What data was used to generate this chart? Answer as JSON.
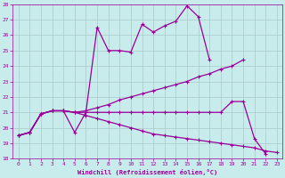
{
  "xlabel": "Windchill (Refroidissement éolien,°C)",
  "xlim": [
    -0.5,
    23.5
  ],
  "ylim": [
    18,
    28
  ],
  "xticks": [
    0,
    1,
    2,
    3,
    4,
    5,
    6,
    7,
    8,
    9,
    10,
    11,
    12,
    13,
    14,
    15,
    16,
    17,
    18,
    19,
    20,
    21,
    22,
    23
  ],
  "yticks": [
    18,
    19,
    20,
    21,
    22,
    23,
    24,
    25,
    26,
    27,
    28
  ],
  "line_color": "#990099",
  "bg_color": "#c8ecec",
  "grid_color": "#aac8c8",
  "series1_x": [
    0,
    1,
    2,
    3,
    4,
    5,
    6,
    7,
    8,
    9,
    10,
    11,
    12,
    13,
    14,
    15,
    16,
    17
  ],
  "series1_y": [
    19.5,
    19.7,
    20.9,
    21.1,
    21.1,
    19.7,
    21.0,
    26.5,
    25.0,
    25.0,
    24.9,
    26.7,
    26.2,
    26.6,
    26.9,
    27.9,
    27.2,
    24.4
  ],
  "series2_x": [
    0,
    1,
    2,
    3,
    4,
    5,
    6,
    7,
    8,
    9,
    10,
    11,
    12,
    13,
    14,
    15,
    16,
    17,
    18,
    19,
    20
  ],
  "series2_y": [
    19.5,
    19.7,
    20.9,
    21.1,
    21.1,
    21.0,
    21.1,
    21.3,
    21.5,
    21.8,
    22.0,
    22.2,
    22.4,
    22.6,
    22.8,
    23.0,
    23.3,
    23.5,
    23.8,
    24.0,
    24.4
  ],
  "series3_x": [
    0,
    1,
    2,
    3,
    4,
    5,
    6,
    7,
    8,
    9,
    10,
    11,
    12,
    13,
    14,
    15,
    16,
    17,
    18,
    19,
    20,
    21,
    22
  ],
  "series3_y": [
    19.5,
    19.7,
    20.9,
    21.1,
    21.1,
    21.0,
    21.0,
    21.0,
    21.0,
    21.0,
    21.0,
    21.0,
    21.0,
    21.0,
    21.0,
    21.0,
    21.0,
    21.0,
    21.0,
    21.7,
    21.7,
    19.3,
    18.3
  ],
  "series4_x": [
    0,
    1,
    2,
    3,
    4,
    5,
    6,
    7,
    8,
    9,
    10,
    11,
    12,
    13,
    14,
    15,
    16,
    17,
    18,
    19,
    20,
    21,
    22,
    23
  ],
  "series4_y": [
    19.5,
    19.7,
    20.9,
    21.1,
    21.1,
    21.0,
    20.8,
    20.6,
    20.4,
    20.2,
    20.0,
    19.8,
    19.6,
    19.5,
    19.4,
    19.3,
    19.2,
    19.1,
    19.0,
    18.9,
    18.8,
    18.7,
    18.5,
    18.4
  ]
}
